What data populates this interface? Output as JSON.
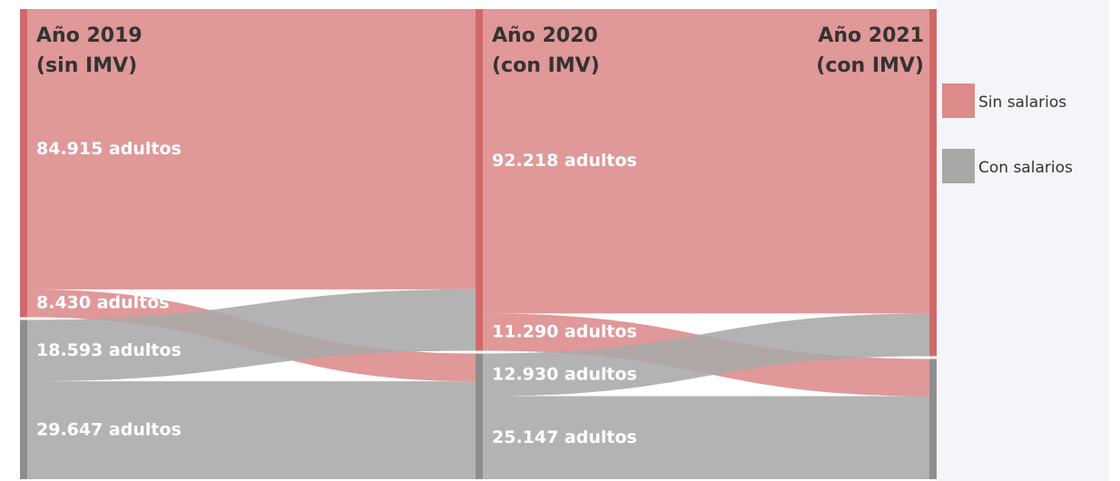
{
  "chart_data": {
    "type": "sankey",
    "stages": [
      [
        "Año 2019",
        "(sin IMV)"
      ],
      [
        "Año 2020",
        "(con IMV)"
      ],
      [
        "Año 2021",
        "(con IMV)"
      ]
    ],
    "series": [
      {
        "name": "Sin salarios",
        "color": "#dc8a8a"
      },
      {
        "name": "Con salarios",
        "color": "#a8a8a8"
      }
    ],
    "flows": [
      {
        "values": [
          [
            84915,
            8430
          ],
          [
            18593,
            29647
          ]
        ],
        "value_labels": [
          [
            "84.915 adultos",
            "8.430 adultos"
          ],
          [
            "18.593 adultos",
            "29.647 adultos"
          ]
        ]
      },
      {
        "values": [
          [
            92218,
            11290
          ],
          [
            12930,
            25147
          ]
        ],
        "value_labels": [
          [
            "92.218 adultos",
            "11.290 adultos"
          ],
          [
            "12.930 adultos",
            "25.147 adultos"
          ]
        ]
      }
    ]
  }
}
